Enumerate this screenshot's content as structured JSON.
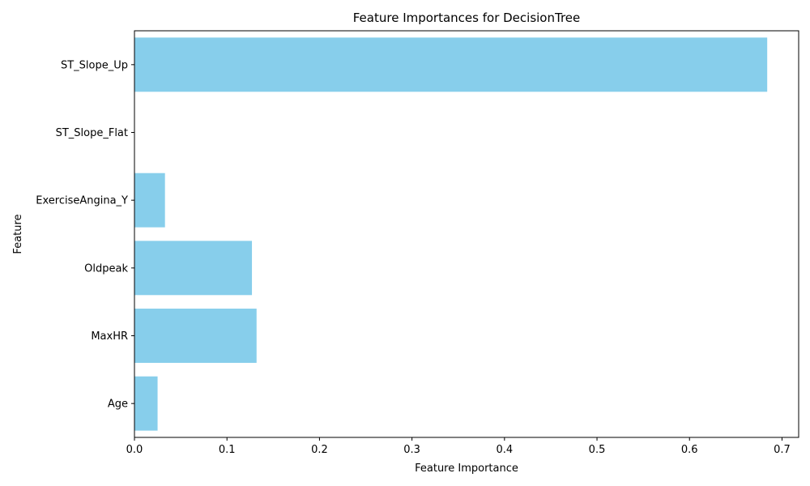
{
  "chart_data": {
    "type": "bar",
    "orientation": "horizontal",
    "title": "Feature Importances for DecisionTree",
    "xlabel": "Feature Importance",
    "ylabel": "Feature",
    "categories": [
      "Age",
      "MaxHR",
      "Oldpeak",
      "ExerciseAngina_Y",
      "ST_Slope_Flat",
      "ST_Slope_Up"
    ],
    "values": [
      0.025,
      0.132,
      0.127,
      0.033,
      0.0,
      0.684
    ],
    "xlim": [
      0,
      0.718
    ],
    "xticks": [
      "0.0",
      "0.1",
      "0.2",
      "0.3",
      "0.4",
      "0.5",
      "0.6",
      "0.7"
    ],
    "bar_color": "#87CEEB",
    "grid": false,
    "legend": false
  }
}
